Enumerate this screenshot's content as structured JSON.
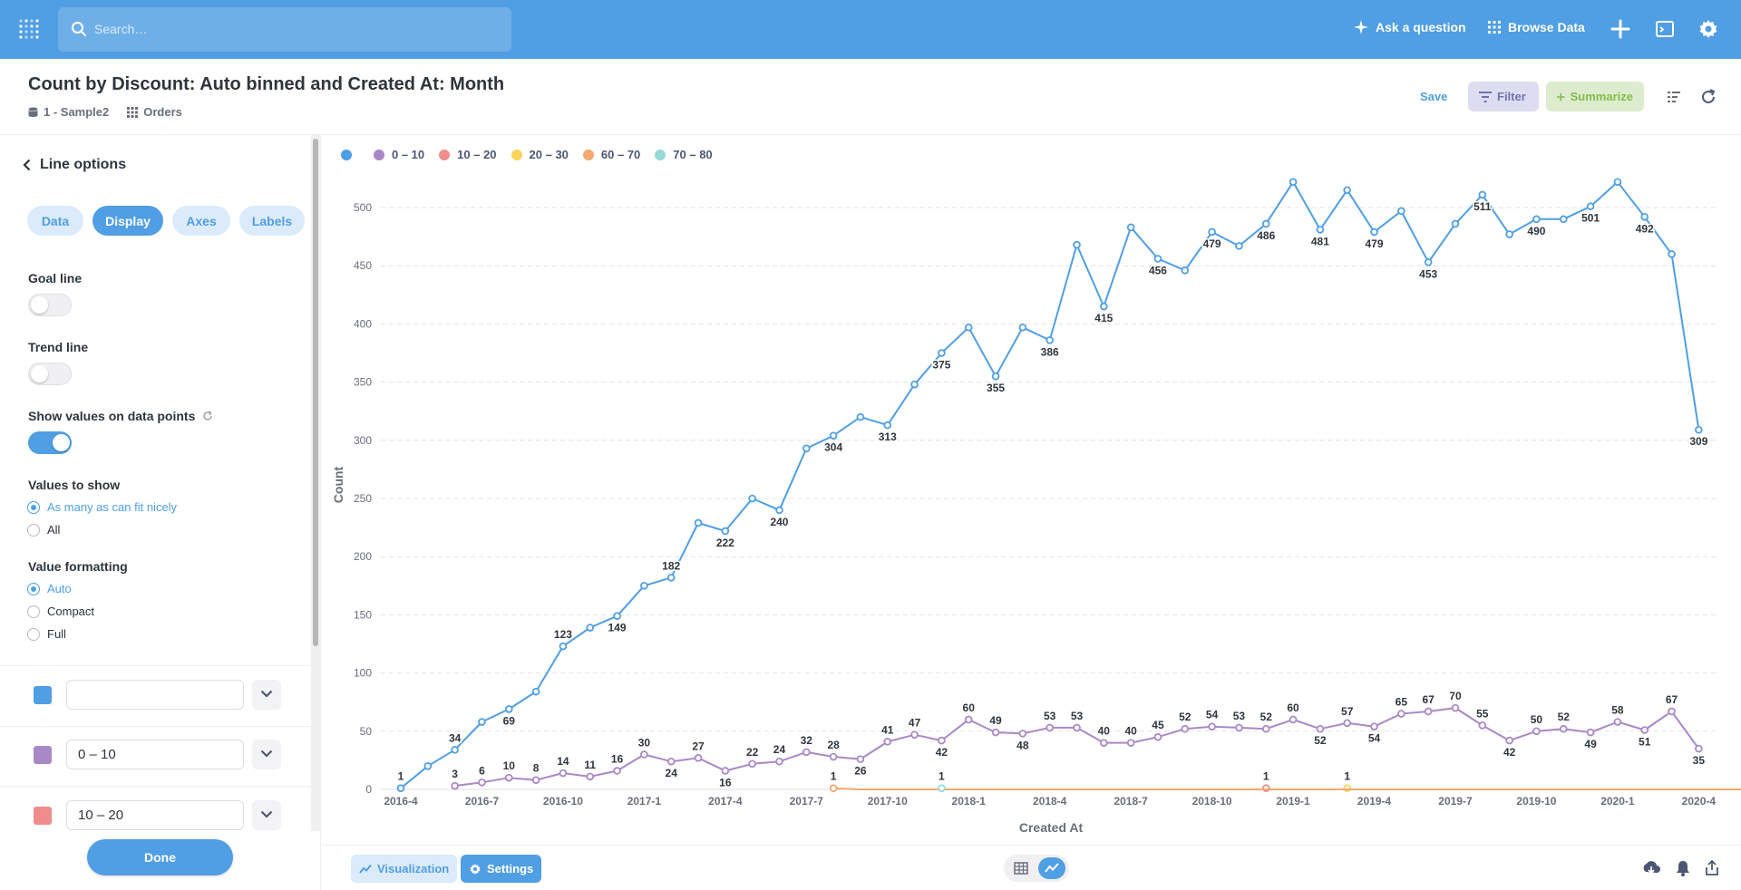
{
  "header": {
    "search_placeholder": "Search…",
    "ask_question": "Ask a question",
    "browse_data": "Browse Data"
  },
  "question": {
    "title": "Count by Discount: Auto binned and Created At: Month",
    "database": "1 - Sample2",
    "table": "Orders",
    "save": "Save",
    "filter": "Filter",
    "summarize": "Summarize"
  },
  "sidebar": {
    "back_label": "Line options",
    "tabs": [
      "Data",
      "Display",
      "Axes",
      "Labels"
    ],
    "active_tab": "Display",
    "goal_line": "Goal line",
    "trend_line": "Trend line",
    "show_values": "Show values on data points",
    "values_to_show": "Values to show",
    "values_options": [
      "As many as can fit nicely",
      "All"
    ],
    "value_formatting": "Value formatting",
    "formatting_options": [
      "Auto",
      "Compact",
      "Full"
    ],
    "series_settings": [
      {
        "color": "#509ee3",
        "name": ""
      },
      {
        "color": "#a989c5",
        "name": "0  –  10"
      },
      {
        "color": "#ef8c8c",
        "name": "10  –  20"
      }
    ],
    "done": "Done"
  },
  "footer": {
    "visualization": "Visualization",
    "settings": "Settings"
  },
  "colors": {
    "brand": "#509ee3",
    "filter": "#7172ad",
    "summarize": "#84bb4c"
  },
  "chart_data": {
    "type": "line",
    "xlabel": "Created At",
    "ylabel": "Count",
    "ylim": [
      0,
      500
    ],
    "yticks": [
      0,
      50,
      100,
      150,
      200,
      250,
      300,
      350,
      400,
      450,
      500
    ],
    "xticks": [
      "2016-4",
      "2016-7",
      "2016-10",
      "2017-1",
      "2017-4",
      "2017-7",
      "2017-10",
      "2018-1",
      "2018-4",
      "2018-7",
      "2018-10",
      "2019-1",
      "2019-4",
      "2019-7",
      "2019-10",
      "2020-1",
      "2020-4"
    ],
    "legend": [
      "",
      "0 – 10",
      "10 – 20",
      "20 – 30",
      "60 – 70",
      "70 – 80"
    ],
    "series": [
      {
        "name": "",
        "color": "#509ee3",
        "start": "2016-4",
        "values": [
          1,
          20,
          34,
          58,
          69,
          84,
          123,
          139,
          149,
          175,
          182,
          229,
          222,
          250,
          240,
          293,
          304,
          320,
          313,
          348,
          375,
          397,
          355,
          397,
          386,
          468,
          415,
          483,
          456,
          446,
          479,
          467,
          486,
          522,
          481,
          515,
          479,
          497,
          453,
          486,
          511,
          477,
          490,
          490,
          501,
          522,
          492,
          460,
          309
        ],
        "labels": [
          "1",
          "",
          "34",
          "",
          "69",
          "",
          "123",
          "",
          "149",
          "",
          "182",
          "",
          "222",
          "",
          "240",
          "",
          "304",
          "",
          "313",
          "",
          "375",
          "",
          "355",
          "",
          "386",
          "",
          "415",
          "",
          "456",
          "",
          "479",
          "",
          "486",
          "",
          "481",
          "",
          "479",
          "",
          "453",
          "",
          "511",
          "",
          "490",
          "",
          "501",
          "",
          "492",
          "",
          "309"
        ],
        "label_below": [
          4,
          8,
          12,
          14,
          16,
          18,
          20,
          22,
          24,
          26,
          28,
          30,
          32,
          34,
          36,
          38,
          40,
          42,
          44,
          46,
          48
        ]
      },
      {
        "name": "0 – 10",
        "color": "#a989c5",
        "start": "2016-6",
        "values": [
          3,
          6,
          10,
          8,
          14,
          11,
          16,
          30,
          24,
          27,
          16,
          22,
          24,
          32,
          28,
          26,
          41,
          47,
          42,
          60,
          49,
          48,
          53,
          53,
          40,
          40,
          45,
          52,
          54,
          53,
          52,
          60,
          52,
          57,
          54,
          65,
          67,
          70,
          55,
          42,
          50,
          52,
          49,
          58,
          51,
          67,
          35
        ],
        "labels": [
          "3",
          "6",
          "10",
          "8",
          "14",
          "11",
          "16",
          "30",
          "24",
          "27",
          "16",
          "22",
          "24",
          "32",
          "28",
          "26",
          "41",
          "47",
          "42",
          "60",
          "49",
          "48",
          "53",
          "53",
          "40",
          "40",
          "45",
          "52",
          "54",
          "53",
          "52",
          "60",
          "52",
          "57",
          "54",
          "65",
          "67",
          "70",
          "55",
          "42",
          "50",
          "52",
          "49",
          "58",
          "51",
          "67",
          "35"
        ],
        "label_below": [
          8,
          10,
          15,
          18,
          21,
          32,
          34,
          39,
          42,
          44,
          46
        ]
      },
      {
        "name": "10 – 20",
        "color": "#ef8c8c",
        "points": [
          [
            "2018-12",
            1
          ]
        ],
        "labels": [
          "1"
        ]
      },
      {
        "name": "20 – 30",
        "color": "#f9d45c",
        "points": [
          [
            "2019-3",
            1
          ]
        ],
        "labels": [
          "1"
        ]
      },
      {
        "name": "60 – 70",
        "color": "#f2a86f",
        "start": "2017-8",
        "values": [
          1,
          0,
          0,
          0,
          0,
          0,
          0,
          0,
          0,
          0,
          0,
          0,
          0,
          0,
          0,
          0,
          0,
          0,
          0,
          0,
          0,
          0,
          0,
          0,
          0,
          0,
          0,
          0,
          0,
          0,
          0,
          0,
          0,
          0,
          0,
          0,
          0,
          0,
          0,
          0,
          1
        ],
        "labels": [
          "1",
          "",
          "",
          "",
          "",
          "",
          "",
          "",
          "",
          "",
          "",
          "",
          "",
          "",
          "",
          "",
          "",
          "",
          "",
          "",
          "",
          "",
          "",
          "",
          "",
          "",
          "",
          "",
          "",
          "",
          "",
          "",
          "",
          "",
          "",
          "",
          "",
          "",
          "",
          "",
          "1"
        ]
      },
      {
        "name": "70 – 80",
        "color": "#98d9d9",
        "points": [
          [
            "2017-12",
            1
          ]
        ],
        "labels": [
          "1"
        ]
      }
    ]
  }
}
